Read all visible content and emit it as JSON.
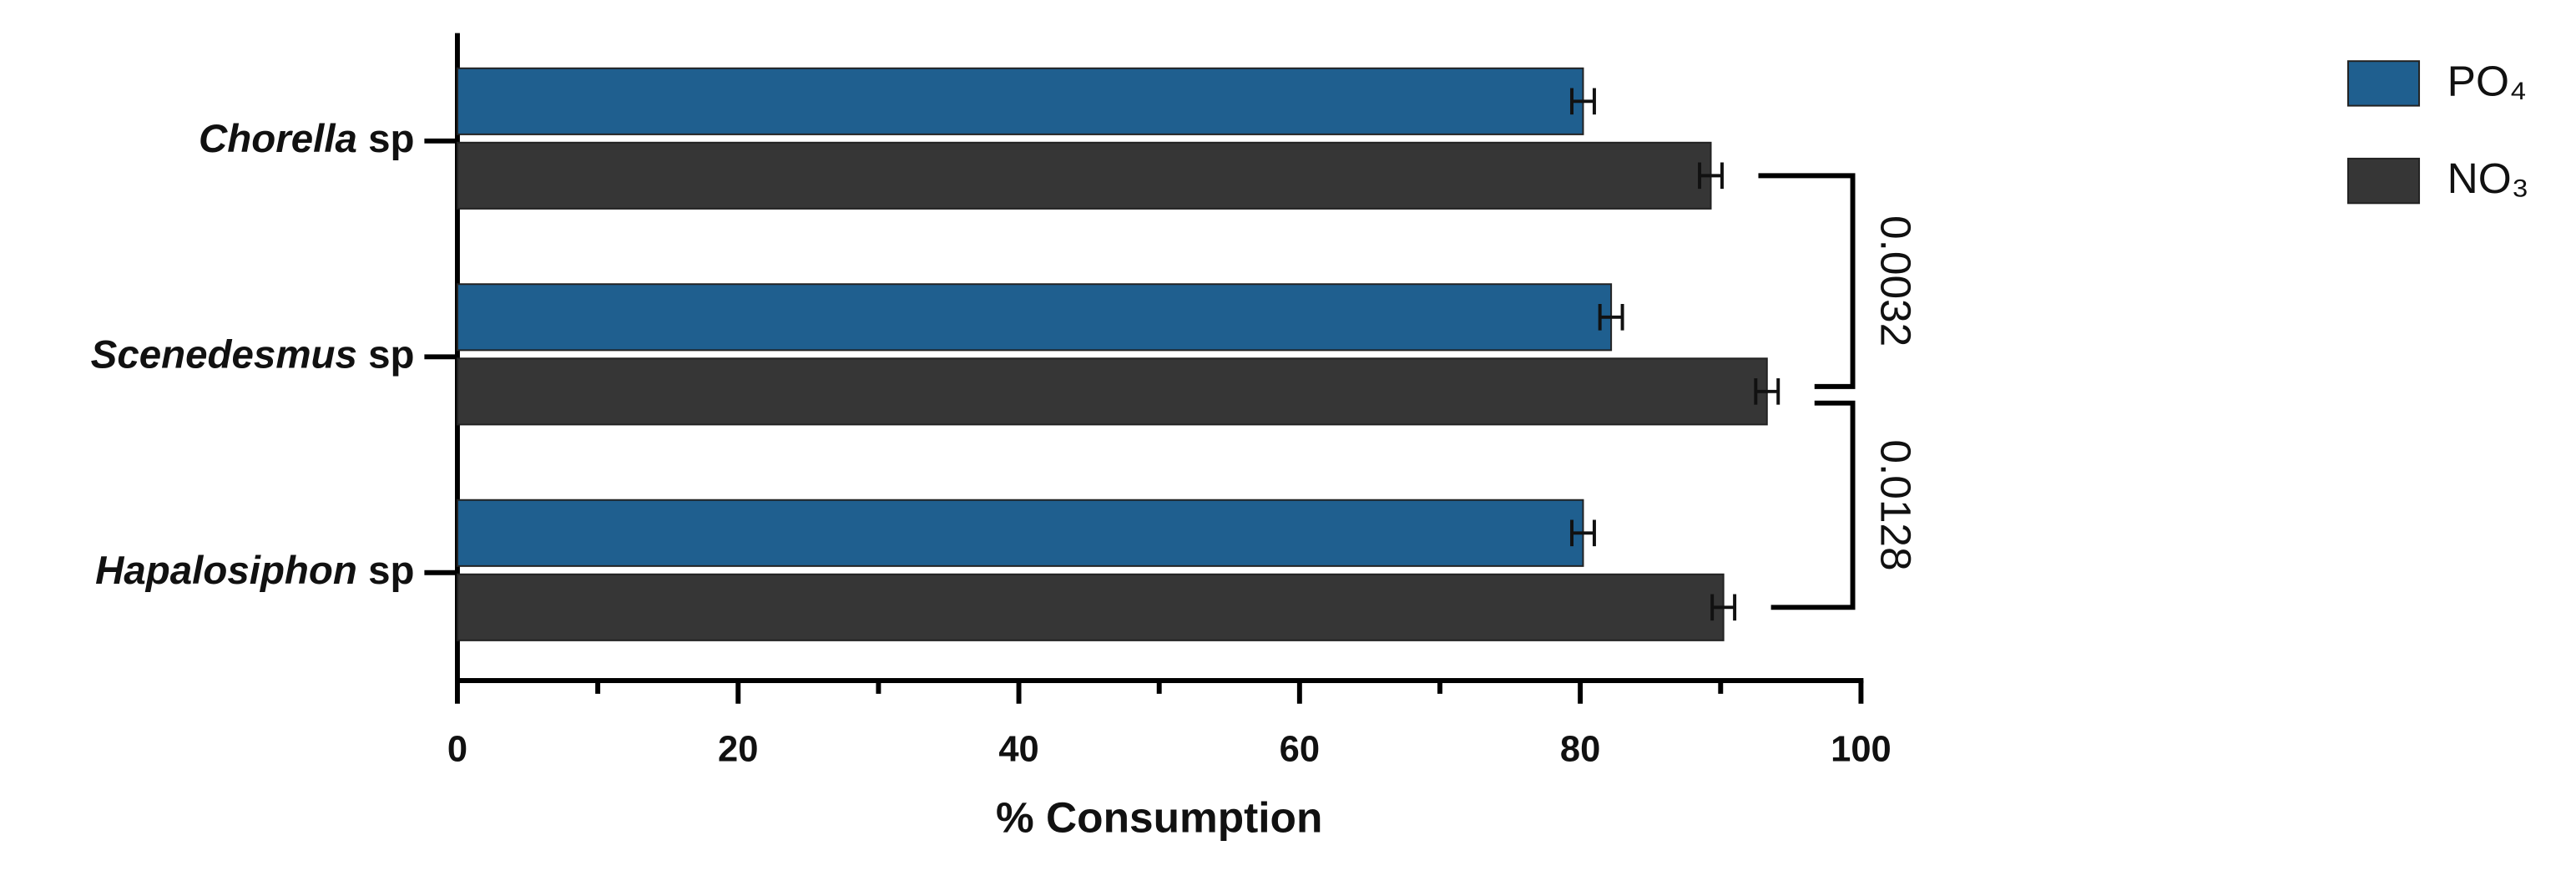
{
  "chart_data": {
    "type": "hbar",
    "categories": [
      "Chorella sp",
      "Scenedesmus sp",
      "Hapalosiphon sp"
    ],
    "series": [
      {
        "name": "PO₄",
        "color": "#1f5f8f",
        "values": [
          80.2,
          82.2,
          80.2
        ],
        "errors": [
          0.8,
          0.8,
          0.8
        ]
      },
      {
        "name": "NO₃",
        "color": "#363636",
        "values": [
          89.3,
          93.3,
          90.2
        ],
        "errors": [
          0.8,
          0.8,
          0.8
        ]
      }
    ],
    "xlabel": "% Consumption",
    "xlim": [
      0,
      100
    ],
    "xticks": [
      0,
      20,
      40,
      60,
      80,
      100
    ],
    "xminorticks": [
      10,
      30,
      50,
      70,
      90
    ],
    "significance": [
      "0.0032",
      "0.0128"
    ],
    "legend": "top-right"
  }
}
